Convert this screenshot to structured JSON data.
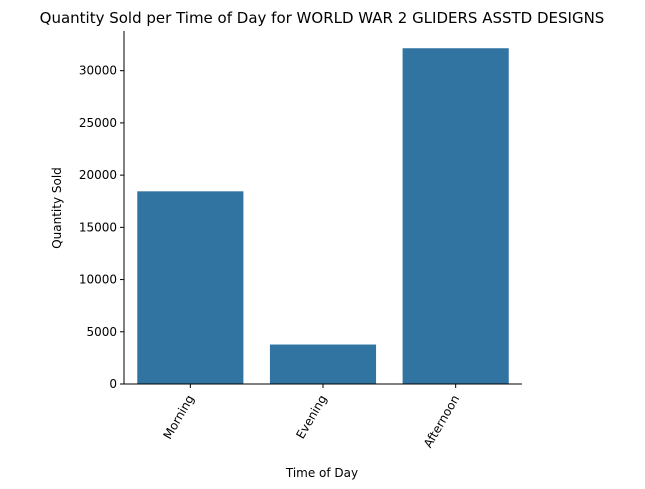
{
  "chart_data": {
    "type": "bar",
    "title": "Quantity Sold per Time of Day for WORLD WAR 2 GLIDERS ASSTD DESIGNS",
    "xlabel": "Time of Day",
    "ylabel": "Quantity Sold",
    "categories": [
      "Morning",
      "Evening",
      "Afternoon"
    ],
    "values": [
      18450,
      3780,
      32150
    ],
    "ylim": [
      0,
      33800
    ],
    "yticks": [
      0,
      5000,
      10000,
      15000,
      20000,
      25000,
      30000
    ],
    "ytick_labels": [
      "0",
      "5000",
      "10000",
      "15000",
      "20000",
      "25000",
      "30000"
    ],
    "xtick_rotation": "-60 degrees",
    "grid": false,
    "bar_color": "#3274a1"
  }
}
